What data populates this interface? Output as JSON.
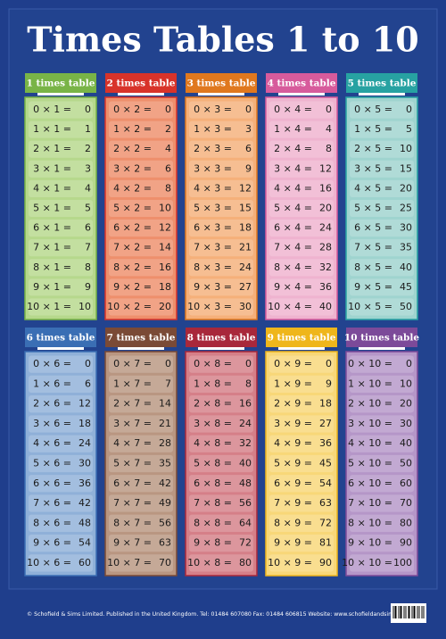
{
  "header": {
    "title": "Times Tables 1 to 10"
  },
  "tables": [
    {
      "title": "1 times table",
      "color": "#79b447",
      "body": "#b6d88c",
      "rows": [
        [
          "0 × 1 =",
          "0"
        ],
        [
          "1 × 1 =",
          "1"
        ],
        [
          "2 × 1 =",
          "2"
        ],
        [
          "3 × 1 =",
          "3"
        ],
        [
          "4 × 1 =",
          "4"
        ],
        [
          "5 × 1 =",
          "5"
        ],
        [
          "6 × 1 =",
          "6"
        ],
        [
          "7 × 1 =",
          "7"
        ],
        [
          "8 × 1 =",
          "8"
        ],
        [
          "9 × 1 =",
          "9"
        ],
        [
          "10 × 1 =",
          "10"
        ]
      ]
    },
    {
      "title": "2 times table",
      "color": "#d8332a",
      "body": "#ee8f6c",
      "rows": [
        [
          "0 × 2 =",
          "0"
        ],
        [
          "1 × 2 =",
          "2"
        ],
        [
          "2 × 2 =",
          "4"
        ],
        [
          "3 × 2 =",
          "6"
        ],
        [
          "4 × 2 =",
          "8"
        ],
        [
          "5 × 2 =",
          "10"
        ],
        [
          "6 × 2 =",
          "12"
        ],
        [
          "7 × 2 =",
          "14"
        ],
        [
          "8 × 2 =",
          "16"
        ],
        [
          "9 × 2 =",
          "18"
        ],
        [
          "10 × 2 =",
          "20"
        ]
      ]
    },
    {
      "title": "3 times table",
      "color": "#e0781e",
      "body": "#f5b07a",
      "rows": [
        [
          "0 × 3 =",
          "0"
        ],
        [
          "1 × 3 =",
          "3"
        ],
        [
          "2 × 3 =",
          "6"
        ],
        [
          "3 × 3 =",
          "9"
        ],
        [
          "4 × 3 =",
          "12"
        ],
        [
          "5 × 3 =",
          "15"
        ],
        [
          "6 × 3 =",
          "18"
        ],
        [
          "7 × 3 =",
          "21"
        ],
        [
          "8 × 3 =",
          "24"
        ],
        [
          "9 × 3 =",
          "27"
        ],
        [
          "10 × 3 =",
          "30"
        ]
      ]
    },
    {
      "title": "4 times table",
      "color": "#d75b9c",
      "body": "#efb3cf",
      "rows": [
        [
          "0 × 4 =",
          "0"
        ],
        [
          "1 × 4 =",
          "4"
        ],
        [
          "2 × 4 =",
          "8"
        ],
        [
          "3 × 4 =",
          "12"
        ],
        [
          "4 × 4 =",
          "16"
        ],
        [
          "5 × 4 =",
          "20"
        ],
        [
          "6 × 4 =",
          "24"
        ],
        [
          "7 × 4 =",
          "28"
        ],
        [
          "8 × 4 =",
          "32"
        ],
        [
          "9 × 4 =",
          "36"
        ],
        [
          "10 × 4 =",
          "40"
        ]
      ]
    },
    {
      "title": "5 times table",
      "color": "#27a2a2",
      "body": "#9fd4cf",
      "rows": [
        [
          "0 × 5 =",
          "0"
        ],
        [
          "1 × 5 =",
          "5"
        ],
        [
          "2 × 5 =",
          "10"
        ],
        [
          "3 × 5 =",
          "15"
        ],
        [
          "4 × 5 =",
          "20"
        ],
        [
          "5 × 5 =",
          "25"
        ],
        [
          "6 × 5 =",
          "30"
        ],
        [
          "7 × 5 =",
          "35"
        ],
        [
          "8 × 5 =",
          "40"
        ],
        [
          "9 × 5 =",
          "45"
        ],
        [
          "10 × 5 =",
          "50"
        ]
      ]
    },
    {
      "title": "6 times table",
      "color": "#3a6eb4",
      "body": "#8fb0d8",
      "rows": [
        [
          "0 × 6 =",
          "0"
        ],
        [
          "1 × 6 =",
          "6"
        ],
        [
          "2 × 6 =",
          "12"
        ],
        [
          "3 × 6 =",
          "18"
        ],
        [
          "4 × 6 =",
          "24"
        ],
        [
          "5 × 6 =",
          "30"
        ],
        [
          "6 × 6 =",
          "36"
        ],
        [
          "7 × 6 =",
          "42"
        ],
        [
          "8 × 6 =",
          "48"
        ],
        [
          "9 × 6 =",
          "54"
        ],
        [
          "10 × 6 =",
          "60"
        ]
      ]
    },
    {
      "title": "7 times table",
      "color": "#7a4a36",
      "body": "#b99681",
      "rows": [
        [
          "0 × 7 =",
          "0"
        ],
        [
          "1 × 7 =",
          "7"
        ],
        [
          "2 × 7 =",
          "14"
        ],
        [
          "3 × 7 =",
          "21"
        ],
        [
          "4 × 7 =",
          "28"
        ],
        [
          "5 × 7 =",
          "35"
        ],
        [
          "6 × 7 =",
          "42"
        ],
        [
          "7 × 7 =",
          "49"
        ],
        [
          "8 × 7 =",
          "56"
        ],
        [
          "9 × 7 =",
          "63"
        ],
        [
          "10 × 7 =",
          "70"
        ]
      ]
    },
    {
      "title": "8 times table",
      "color": "#a8283b",
      "body": "#d57f88",
      "rows": [
        [
          "0 × 8 =",
          "0"
        ],
        [
          "1 × 8 =",
          "8"
        ],
        [
          "2 × 8 =",
          "16"
        ],
        [
          "3 × 8 =",
          "24"
        ],
        [
          "4 × 8 =",
          "32"
        ],
        [
          "5 × 8 =",
          "40"
        ],
        [
          "6 × 8 =",
          "48"
        ],
        [
          "7 × 8 =",
          "56"
        ],
        [
          "8 × 8 =",
          "64"
        ],
        [
          "9 × 8 =",
          "72"
        ],
        [
          "10 × 8 =",
          "80"
        ]
      ]
    },
    {
      "title": "9 times table",
      "color": "#efb61b",
      "body": "#f8d778",
      "rows": [
        [
          "0 × 9 =",
          "0"
        ],
        [
          "1 × 9 =",
          "9"
        ],
        [
          "2 × 9 =",
          "18"
        ],
        [
          "3 × 9 =",
          "27"
        ],
        [
          "4 × 9 =",
          "36"
        ],
        [
          "5 × 9 =",
          "45"
        ],
        [
          "6 × 9 =",
          "54"
        ],
        [
          "7 × 9 =",
          "63"
        ],
        [
          "8 × 9 =",
          "72"
        ],
        [
          "9 × 9 =",
          "81"
        ],
        [
          "10 × 9 =",
          "90"
        ]
      ]
    },
    {
      "title": "10 times table",
      "color": "#7c4a99",
      "body": "#b596c8",
      "rows": [
        [
          "0 × 10 =",
          "0"
        ],
        [
          "1 × 10 =",
          "10"
        ],
        [
          "2 × 10 =",
          "20"
        ],
        [
          "3 × 10 =",
          "30"
        ],
        [
          "4 × 10 =",
          "40"
        ],
        [
          "5 × 10 =",
          "50"
        ],
        [
          "6 × 10 =",
          "60"
        ],
        [
          "7 × 10 =",
          "70"
        ],
        [
          "8 × 10 =",
          "80"
        ],
        [
          "9 × 10 =",
          "90"
        ],
        [
          "10 × 10 =",
          "100"
        ]
      ]
    }
  ],
  "footer": {
    "text": "© Schofield & Sims Limited. Published in the United Kingdom.   Tel: 01484 607080  Fax: 01484 606815  Website: www.schofieldandsims.co.uk"
  }
}
